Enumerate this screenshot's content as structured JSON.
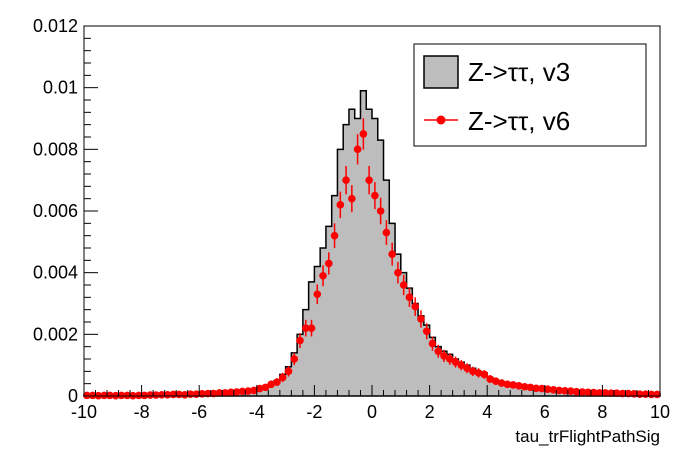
{
  "chart_data": {
    "type": "histogram",
    "xlabel": "tau_trFlightPathSig",
    "ylabel": "",
    "xlim": [
      -10,
      10
    ],
    "ylim": [
      0,
      0.012
    ],
    "x_ticks": [
      -10,
      -8,
      -6,
      -4,
      -2,
      0,
      2,
      4,
      6,
      8,
      10
    ],
    "x_tick_labels": [
      "-10",
      "-8",
      "-6",
      "-4",
      "-2",
      "0",
      "2",
      "4",
      "6",
      "8",
      "10"
    ],
    "y_ticks": [
      0,
      0.002,
      0.004,
      0.006,
      0.008,
      0.01,
      0.012
    ],
    "y_tick_labels": [
      "0",
      "0.002",
      "0.004",
      "0.006",
      "0.008",
      "0.01",
      "0.012"
    ],
    "grid": false,
    "legend_position": "top-right",
    "colors": {
      "hist_fill": "#bdbdbd",
      "hist_line": "#000000",
      "points": "#ff0000"
    },
    "bins": {
      "x_min": -10,
      "x_max": 10,
      "width": 0.2,
      "v3": [
        3e-05,
        3e-05,
        3e-05,
        2e-05,
        3e-05,
        3e-05,
        3e-05,
        2e-05,
        3e-05,
        3e-05,
        4e-05,
        4e-05,
        5e-05,
        5e-05,
        5e-05,
        6e-05,
        6e-05,
        6e-05,
        7e-05,
        7e-05,
        8e-05,
        9e-05,
        0.0001,
        0.00011,
        0.00012,
        0.00013,
        0.00015,
        0.00017,
        0.00018,
        0.0002,
        0.00025,
        0.0003,
        0.0004,
        0.0005,
        0.0007,
        0.00095,
        0.0014,
        0.002,
        0.0028,
        0.0037,
        0.0042,
        0.0048,
        0.0055,
        0.0065,
        0.008,
        0.0088,
        0.0093,
        0.009,
        0.0099,
        0.0093,
        0.009,
        0.0083,
        0.007,
        0.0056,
        0.0046,
        0.004,
        0.0035,
        0.003,
        0.0026,
        0.0023,
        0.0019,
        0.0016,
        0.00145,
        0.00135,
        0.0012,
        0.0011,
        0.001,
        0.0009,
        0.0008,
        0.00075,
        0.0006,
        0.0005,
        0.00045,
        0.0004,
        0.0004,
        0.00035,
        0.00032,
        0.0003,
        0.00028,
        0.00026,
        0.00025,
        0.00022,
        0.0002,
        0.0002,
        0.00018,
        0.00016,
        0.00014,
        0.00014,
        0.00013,
        0.00012,
        0.00012,
        0.00011,
        0.0001,
        0.0001,
        9e-05,
        9e-05,
        8e-05,
        8e-05,
        7e-05,
        6e-05
      ],
      "v6": [
        2e-05,
        2e-05,
        1e-05,
        2e-05,
        2e-05,
        1e-05,
        2e-05,
        2e-05,
        1e-05,
        2e-05,
        2e-05,
        3e-05,
        3e-05,
        4e-05,
        4e-05,
        5e-05,
        5e-05,
        4e-05,
        6e-05,
        6e-05,
        7e-05,
        8e-05,
        8e-05,
        0.0001,
        0.0001,
        0.00012,
        0.00013,
        0.00015,
        0.00016,
        0.00018,
        0.00024,
        0.00028,
        0.00038,
        0.00045,
        0.0006,
        0.0008,
        0.0012,
        0.0018,
        0.0022,
        0.0022,
        0.0033,
        0.0039,
        0.0043,
        0.0052,
        0.0062,
        0.007,
        0.0064,
        0.008,
        0.0085,
        0.007,
        0.0065,
        0.006,
        0.0053,
        0.0046,
        0.004,
        0.0036,
        0.0032,
        0.0029,
        0.0025,
        0.0021,
        0.0017,
        0.00145,
        0.0013,
        0.0012,
        0.0011,
        0.001,
        0.0009,
        0.0008,
        0.00075,
        0.0007,
        0.00055,
        0.00048,
        0.00042,
        0.00038,
        0.00036,
        0.00033,
        0.0003,
        0.00028,
        0.00025,
        0.00024,
        0.00022,
        0.0002,
        0.00018,
        0.00017,
        0.00016,
        0.00014,
        0.00013,
        0.00012,
        0.00011,
        0.0001,
        0.0001,
        9e-05,
        9e-05,
        8e-05,
        8e-05,
        7e-05,
        6e-05,
        6e-05,
        5e-05,
        5e-05
      ],
      "v6_err": [
        3e-05,
        3e-05,
        3e-05,
        3e-05,
        3e-05,
        3e-05,
        3e-05,
        3e-05,
        3e-05,
        3e-05,
        3e-05,
        4e-05,
        4e-05,
        4e-05,
        4e-05,
        5e-05,
        5e-05,
        5e-05,
        5e-05,
        5e-05,
        6e-05,
        6e-05,
        6e-05,
        7e-05,
        7e-05,
        7e-05,
        8e-05,
        8e-05,
        8e-05,
        9e-05,
        0.0001,
        0.00011,
        0.00012,
        0.00013,
        0.00015,
        0.00017,
        0.0002,
        0.00024,
        0.00027,
        0.00027,
        0.00032,
        0.00034,
        0.00036,
        0.0004,
        0.00043,
        0.00046,
        0.00044,
        0.00049,
        0.00051,
        0.00046,
        0.00044,
        0.00043,
        0.0004,
        0.00037,
        0.00035,
        0.00033,
        0.00031,
        0.0003,
        0.00028,
        0.00026,
        0.00023,
        0.00021,
        0.0002,
        0.00019,
        0.00018,
        0.00017,
        0.00016,
        0.00015,
        0.00015,
        0.00014,
        0.00013,
        0.00012,
        0.00011,
        0.0001,
        0.0001,
        0.0001,
        9e-05,
        9e-05,
        8e-05,
        8e-05,
        8e-05,
        7e-05,
        7e-05,
        7e-05,
        6e-05,
        6e-05,
        6e-05,
        5e-05,
        5e-05,
        5e-05,
        5e-05,
        5e-05,
        5e-05,
        4e-05,
        4e-05,
        4e-05,
        4e-05,
        4e-05,
        3e-05,
        3e-05
      ]
    },
    "legend": [
      {
        "label": "Z->ττ, v3",
        "style": "filled-box"
      },
      {
        "label": "Z->ττ, v6",
        "style": "marker-line"
      }
    ]
  }
}
